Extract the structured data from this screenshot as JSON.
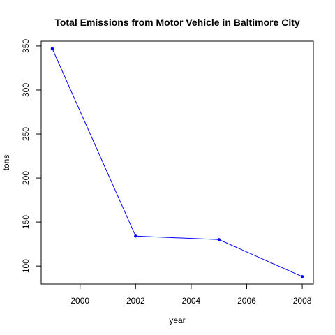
{
  "chart_data": {
    "type": "line",
    "title": "Total Emissions from Motor Vehicle in Baltimore City",
    "xlabel": "year",
    "ylabel": "tons",
    "x": [
      1999,
      2002,
      2005,
      2008
    ],
    "y": [
      347,
      134,
      130,
      88
    ],
    "xlim": [
      1998.6,
      2008.4
    ],
    "ylim": [
      79.5,
      355.5
    ],
    "xticks": [
      2000,
      2002,
      2004,
      2006,
      2008
    ],
    "yticks": [
      100,
      150,
      200,
      250,
      300,
      350
    ],
    "grid": false,
    "line_color": "#0000ff",
    "point_color": "#0000ff"
  }
}
